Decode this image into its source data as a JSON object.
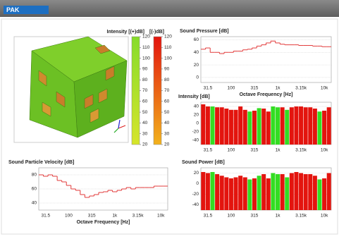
{
  "header": {
    "logo": "PAK"
  },
  "chart_data": [
    {
      "type": "colorbar",
      "title": "Intensity [(+)dB]",
      "colors": [
        "#86dc2a",
        "#d6e52a"
      ],
      "ylim": [
        20,
        120
      ],
      "yticks": [
        20,
        30,
        40,
        50,
        60,
        70,
        80,
        90,
        100,
        110,
        120
      ]
    },
    {
      "type": "colorbar",
      "title": "[(-)dB]",
      "colors": [
        "#e3140e",
        "#f2b21c"
      ],
      "ylim": [
        20,
        120
      ],
      "yticks": [
        20,
        30,
        40,
        50,
        60,
        70,
        80,
        90,
        100,
        110,
        120
      ]
    },
    {
      "type": "step",
      "title": "Sound Pressure [dB]",
      "x_label": "Octave Frequency [Hz]",
      "color": "#e23a3a",
      "grid": true,
      "categories": [
        null,
        "31.5",
        null,
        null,
        null,
        null,
        "100",
        null,
        null,
        null,
        null,
        "315",
        null,
        null,
        null,
        null,
        "1k",
        null,
        null,
        null,
        null,
        "3.15k",
        null,
        null,
        null,
        null,
        "10k",
        null
      ],
      "values": [
        45,
        47,
        40,
        40,
        38,
        40,
        40,
        42,
        42,
        44,
        45,
        47,
        50,
        52,
        55,
        58,
        55,
        53,
        52,
        52,
        52,
        51,
        51,
        51,
        50,
        50,
        49,
        49
      ],
      "ylim": [
        -8,
        65
      ],
      "yticks": [
        0,
        20,
        40,
        60
      ]
    },
    {
      "type": "bar",
      "title": "Intensity [dB]",
      "grid": true,
      "categories": [
        null,
        "31.5",
        null,
        null,
        null,
        null,
        "100",
        null,
        null,
        null,
        null,
        "315",
        null,
        null,
        null,
        null,
        "1k",
        null,
        null,
        null,
        null,
        "3.15k",
        null,
        null,
        null,
        null,
        "10k",
        null
      ],
      "values": [
        45,
        40,
        40,
        38,
        38,
        35,
        32,
        32,
        40,
        32,
        28,
        30,
        36,
        35,
        28,
        40,
        38,
        38,
        32,
        38,
        40,
        40,
        38,
        38,
        35,
        28,
        30,
        38
      ],
      "colors": [
        "#e3140e",
        "#e3140e",
        "#33dd22",
        "#e3140e",
        "#e3140e",
        "#e3140e",
        "#e3140e",
        "#e3140e",
        "#e3140e",
        "#e3140e",
        "#33dd22",
        "#e3140e",
        "#33dd22",
        "#e3140e",
        "#e3140e",
        "#33dd22",
        "#33dd22",
        "#e3140e",
        "#33dd22",
        "#e3140e",
        "#e3140e",
        "#e3140e",
        "#e3140e",
        "#e3140e",
        "#e3140e",
        "#33dd22",
        "#e3140e",
        "#e3140e"
      ],
      "ylim": [
        -50,
        50
      ],
      "yticks": [
        40,
        20,
        0,
        -20,
        -40
      ]
    },
    {
      "type": "step",
      "title": "Sound Particle Velocity [dB]",
      "x_label": "Octave Frequency [Hz]",
      "color": "#e23a3a",
      "grid": true,
      "categories": [
        null,
        "31.5",
        null,
        null,
        null,
        null,
        "100",
        null,
        null,
        null,
        null,
        "315",
        null,
        null,
        null,
        null,
        "1k",
        null,
        null,
        null,
        null,
        "3.15k",
        null,
        null,
        null,
        null,
        "10k",
        null
      ],
      "values": [
        80,
        78,
        80,
        78,
        72,
        70,
        65,
        60,
        58,
        52,
        48,
        50,
        52,
        55,
        56,
        58,
        56,
        58,
        60,
        62,
        60,
        62,
        62,
        62,
        62,
        64,
        64,
        64
      ],
      "ylim": [
        30,
        90
      ],
      "yticks": [
        40,
        60,
        80
      ]
    },
    {
      "type": "bar",
      "title": "Sound Power [dB]",
      "grid": true,
      "categories": [
        null,
        "31.5",
        null,
        null,
        null,
        null,
        "100",
        null,
        null,
        null,
        null,
        "315",
        null,
        null,
        null,
        null,
        "1k",
        null,
        null,
        null,
        null,
        "3.15k",
        null,
        null,
        null,
        null,
        "10k",
        null
      ],
      "values": [
        22,
        20,
        22,
        18,
        15,
        12,
        10,
        12,
        15,
        12,
        8,
        10,
        15,
        18,
        10,
        20,
        18,
        18,
        12,
        20,
        22,
        20,
        18,
        18,
        15,
        8,
        10,
        20
      ],
      "colors": [
        "#e3140e",
        "#e3140e",
        "#33dd22",
        "#e3140e",
        "#e3140e",
        "#e3140e",
        "#e3140e",
        "#e3140e",
        "#e3140e",
        "#e3140e",
        "#33dd22",
        "#e3140e",
        "#33dd22",
        "#e3140e",
        "#e3140e",
        "#33dd22",
        "#33dd22",
        "#e3140e",
        "#33dd22",
        "#e3140e",
        "#e3140e",
        "#e3140e",
        "#e3140e",
        "#e3140e",
        "#e3140e",
        "#33dd22",
        "#e3140e",
        "#e3140e"
      ],
      "ylim": [
        -50,
        30
      ],
      "yticks": [
        20,
        0,
        -20,
        -40
      ]
    }
  ]
}
